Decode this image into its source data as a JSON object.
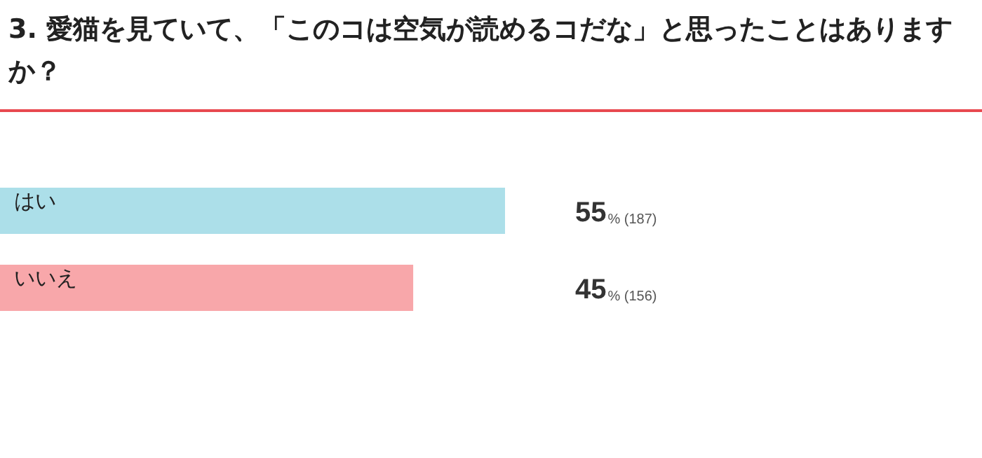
{
  "chart_data": {
    "type": "bar",
    "orientation": "horizontal",
    "title": "3. 愛猫を見ていて、「このコは空気が読めるコだな」と思ったことはありますか？",
    "categories": [
      "はい",
      "いいえ"
    ],
    "values": [
      55,
      45
    ],
    "colors": [
      "#acdfe9",
      "#f8a7aa"
    ],
    "value_labels": [
      "55% (187)",
      "45% (156)"
    ],
    "legend": false,
    "tick_labels": false
  }
}
